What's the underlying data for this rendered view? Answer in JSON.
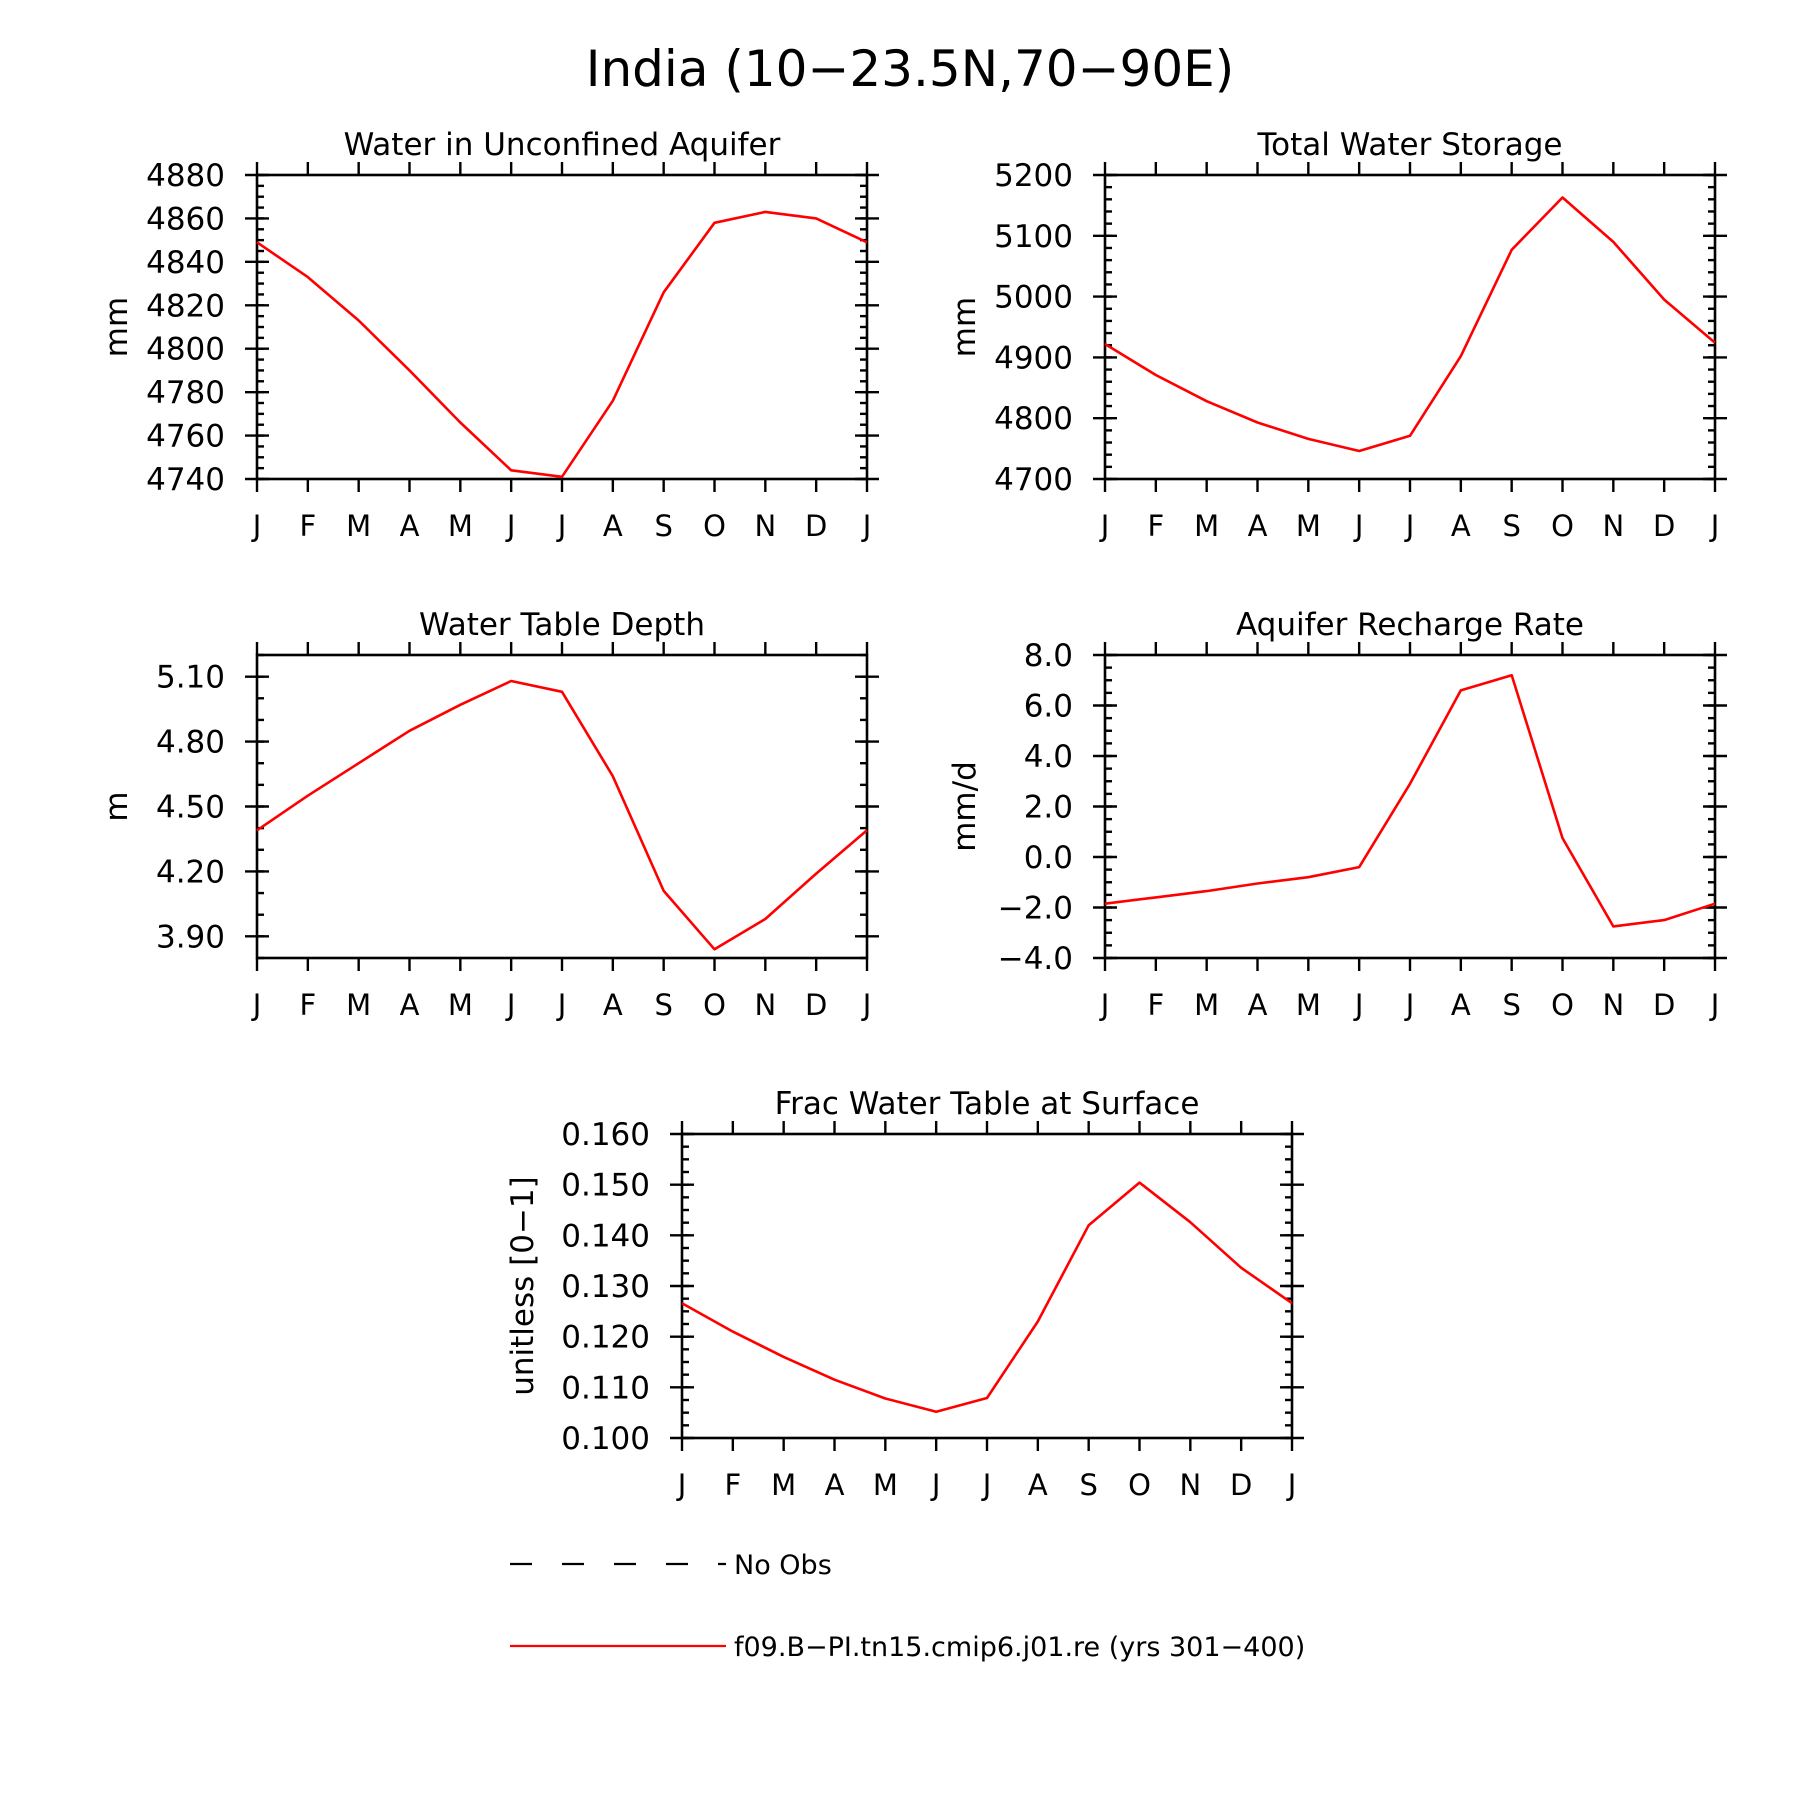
{
  "figure": {
    "title": "India (10−23.5N,70−90E)",
    "legend": [
      {
        "label": "No Obs",
        "style": "dashed",
        "color": "#000000"
      },
      {
        "label": "f09.B−PI.tn15.cmip6.j01.re (yrs 301−400)",
        "style": "solid",
        "color": "#ff0000"
      }
    ]
  },
  "chart_data": [
    {
      "type": "line",
      "title": "Water in Unconfined Aquifer",
      "ylabel": "mm",
      "xlabel": "",
      "categories": [
        "J",
        "F",
        "M",
        "A",
        "M",
        "J",
        "J",
        "A",
        "S",
        "O",
        "N",
        "D",
        "J"
      ],
      "ylim": [
        4740,
        4880
      ],
      "yticks": [
        4740,
        4760,
        4780,
        4800,
        4820,
        4840,
        4860,
        4880
      ],
      "ytick_labels": [
        "4740",
        "4760",
        "4780",
        "4800",
        "4820",
        "4840",
        "4860",
        "4880"
      ],
      "y_minor_step": 5,
      "grid": false,
      "series": [
        {
          "color": "#ff0000",
          "values": [
            4849,
            4833,
            4813,
            4790,
            4766,
            4744,
            4741,
            4776,
            4826,
            4858,
            4863,
            4860,
            4849
          ]
        }
      ]
    },
    {
      "type": "line",
      "title": "Total Water Storage",
      "ylabel": "mm",
      "xlabel": "",
      "categories": [
        "J",
        "F",
        "M",
        "A",
        "M",
        "J",
        "J",
        "A",
        "S",
        "O",
        "N",
        "D",
        "J"
      ],
      "ylim": [
        4700,
        5200
      ],
      "yticks": [
        4700,
        4800,
        4900,
        5000,
        5100,
        5200
      ],
      "ytick_labels": [
        "4700",
        "4800",
        "4900",
        "5000",
        "5100",
        "5200"
      ],
      "y_minor_step": 20,
      "grid": false,
      "series": [
        {
          "color": "#ff0000",
          "values": [
            4922,
            4871,
            4828,
            4793,
            4766,
            4746,
            4771,
            4902,
            5077,
            5163,
            5090,
            4995,
            4924
          ]
        }
      ]
    },
    {
      "type": "line",
      "title": "Water Table Depth",
      "ylabel": "m",
      "xlabel": "",
      "categories": [
        "J",
        "F",
        "M",
        "A",
        "M",
        "J",
        "J",
        "A",
        "S",
        "O",
        "N",
        "D",
        "J"
      ],
      "ylim": [
        3.8,
        5.2
      ],
      "yticks": [
        3.9,
        4.2,
        4.5,
        4.8,
        5.1
      ],
      "ytick_labels": [
        "3.90",
        "4.20",
        "4.50",
        "4.80",
        "5.10"
      ],
      "y_minor_step": 0.1,
      "grid": false,
      "series": [
        {
          "color": "#ff0000",
          "values": [
            4.39,
            4.55,
            4.7,
            4.85,
            4.97,
            5.08,
            5.03,
            4.64,
            4.11,
            3.84,
            3.98,
            4.19,
            4.39
          ]
        }
      ]
    },
    {
      "type": "line",
      "title": "Aquifer Recharge Rate",
      "ylabel": "mm/d",
      "xlabel": "",
      "categories": [
        "J",
        "F",
        "M",
        "A",
        "M",
        "J",
        "J",
        "A",
        "S",
        "O",
        "N",
        "D",
        "J"
      ],
      "ylim": [
        -4.0,
        8.0
      ],
      "yticks": [
        -4.0,
        -2.0,
        0.0,
        2.0,
        4.0,
        6.0,
        8.0
      ],
      "ytick_labels": [
        "−4.0",
        "−2.0",
        "0.0",
        "2.0",
        "4.0",
        "6.0",
        "8.0"
      ],
      "y_minor_step": 0.5,
      "grid": false,
      "series": [
        {
          "color": "#ff0000",
          "values": [
            -1.85,
            -1.6,
            -1.35,
            -1.05,
            -0.8,
            -0.4,
            2.9,
            6.6,
            7.2,
            0.75,
            -2.75,
            -2.5,
            -1.85
          ]
        }
      ]
    },
    {
      "type": "line",
      "title": "Frac Water Table at Surface",
      "ylabel": "unitless [0−1]",
      "xlabel": "",
      "categories": [
        "J",
        "F",
        "M",
        "A",
        "M",
        "J",
        "J",
        "A",
        "S",
        "O",
        "N",
        "D",
        "J"
      ],
      "ylim": [
        0.1,
        0.16
      ],
      "yticks": [
        0.1,
        0.11,
        0.12,
        0.13,
        0.14,
        0.15,
        0.16
      ],
      "ytick_labels": [
        "0.100",
        "0.110",
        "0.120",
        "0.130",
        "0.140",
        "0.150",
        "0.160"
      ],
      "y_minor_step": 0.0025,
      "grid": false,
      "series": [
        {
          "color": "#ff0000",
          "values": [
            0.1266,
            0.121,
            0.116,
            0.1115,
            0.1078,
            0.1052,
            0.1079,
            0.123,
            0.142,
            0.1504,
            0.1426,
            0.1336,
            0.1266
          ]
        }
      ]
    }
  ]
}
